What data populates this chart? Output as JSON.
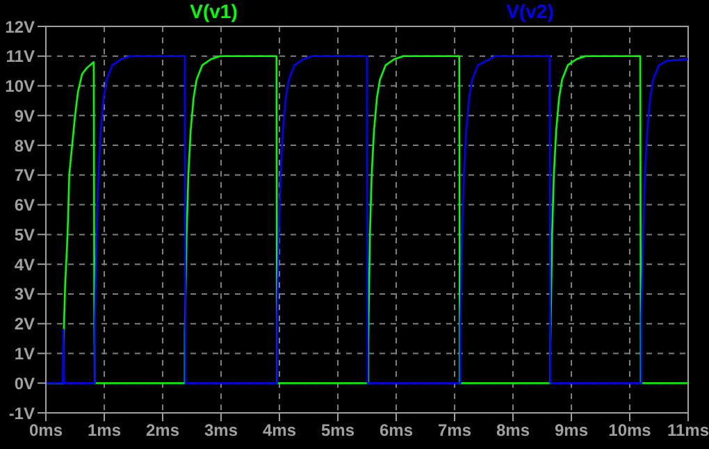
{
  "chart_data": {
    "type": "line",
    "legend": "top",
    "grid": true,
    "xlim": [
      0,
      11
    ],
    "xticks": [
      {
        "value": 0,
        "label": "0ms"
      },
      {
        "value": 1,
        "label": "1ms"
      },
      {
        "value": 2,
        "label": "2ms"
      },
      {
        "value": 3,
        "label": "3ms"
      },
      {
        "value": 4,
        "label": "4ms"
      },
      {
        "value": 5,
        "label": "5ms"
      },
      {
        "value": 6,
        "label": "6ms"
      },
      {
        "value": 7,
        "label": "7ms"
      },
      {
        "value": 8,
        "label": "8ms"
      },
      {
        "value": 9,
        "label": "9ms"
      },
      {
        "value": 10,
        "label": "10ms"
      },
      {
        "value": 11,
        "label": "11ms"
      }
    ],
    "ylim": [
      -1,
      12
    ],
    "yticks": [
      {
        "value": -1,
        "label": "-1V"
      },
      {
        "value": 0,
        "label": "0V"
      },
      {
        "value": 1,
        "label": "1V"
      },
      {
        "value": 2,
        "label": "2V"
      },
      {
        "value": 3,
        "label": "3V"
      },
      {
        "value": 4,
        "label": "4V"
      },
      {
        "value": 5,
        "label": "5V"
      },
      {
        "value": 6,
        "label": "6V"
      },
      {
        "value": 7,
        "label": "7V"
      },
      {
        "value": 8,
        "label": "8V"
      },
      {
        "value": 9,
        "label": "9V"
      },
      {
        "value": 10,
        "label": "10V"
      },
      {
        "value": 11,
        "label": "11V"
      },
      {
        "value": 12,
        "label": "12V"
      }
    ],
    "series": [
      {
        "name": "V(v1)",
        "color": "#00ff00",
        "x": [
          0,
          0.3,
          0.3,
          0.33,
          0.36,
          0.38,
          0.4,
          0.45,
          0.5,
          0.55,
          0.62,
          0.7,
          0.82,
          0.83,
          0.84,
          2.38,
          2.38,
          2.41,
          2.44,
          2.48,
          2.53,
          2.58,
          2.68,
          2.83,
          2.98,
          3.95,
          3.96,
          5.52,
          5.52,
          5.55,
          5.58,
          5.62,
          5.67,
          5.72,
          5.82,
          5.97,
          6.12,
          7.08,
          7.09,
          8.64,
          8.64,
          8.67,
          8.7,
          8.74,
          8.79,
          8.84,
          8.94,
          9.09,
          9.24,
          10.18,
          10.19,
          11
        ],
        "values": [
          0,
          0,
          1.2,
          3.3,
          4.5,
          5.5,
          7,
          8,
          9,
          9.8,
          10.4,
          10.6,
          10.8,
          2.1,
          0,
          0,
          1.7,
          5,
          7,
          8.5,
          9.6,
          10.2,
          10.7,
          10.9,
          11,
          11,
          0,
          0,
          1.3,
          5,
          7,
          8.5,
          9.6,
          10.2,
          10.7,
          10.9,
          11,
          11,
          0,
          0,
          1.3,
          5,
          7,
          8.5,
          9.6,
          10.2,
          10.7,
          10.9,
          11,
          11,
          0,
          0
        ]
      },
      {
        "name": "V(v2)",
        "color": "#0000ff",
        "x": [
          0,
          0.29,
          0.3,
          0.31,
          0.84,
          0.84,
          0.87,
          0.9,
          0.94,
          0.99,
          1.04,
          1.14,
          1.29,
          1.44,
          2.38,
          2.39,
          3.96,
          3.96,
          3.99,
          4.02,
          4.06,
          4.11,
          4.16,
          4.26,
          4.41,
          4.56,
          5.5,
          5.51,
          7.1,
          7.1,
          7.13,
          7.16,
          7.2,
          7.25,
          7.3,
          7.4,
          7.55,
          7.7,
          8.63,
          8.64,
          10.2,
          10.2,
          10.23,
          10.26,
          10.3,
          10.35,
          10.4,
          10.5,
          10.65,
          11
        ],
        "values": [
          0,
          0,
          1.8,
          0,
          0,
          2.1,
          5,
          7,
          8.5,
          9.6,
          10.2,
          10.7,
          10.9,
          11,
          11,
          0,
          0,
          2.2,
          5,
          7,
          8.5,
          9.6,
          10.2,
          10.7,
          10.9,
          11,
          11,
          0,
          0,
          2,
          5,
          7,
          8.5,
          9.6,
          10.2,
          10.7,
          10.85,
          11,
          11,
          0,
          0,
          2.3,
          5,
          7,
          8.5,
          9.6,
          10.2,
          10.7,
          10.85,
          10.9
        ]
      }
    ]
  }
}
